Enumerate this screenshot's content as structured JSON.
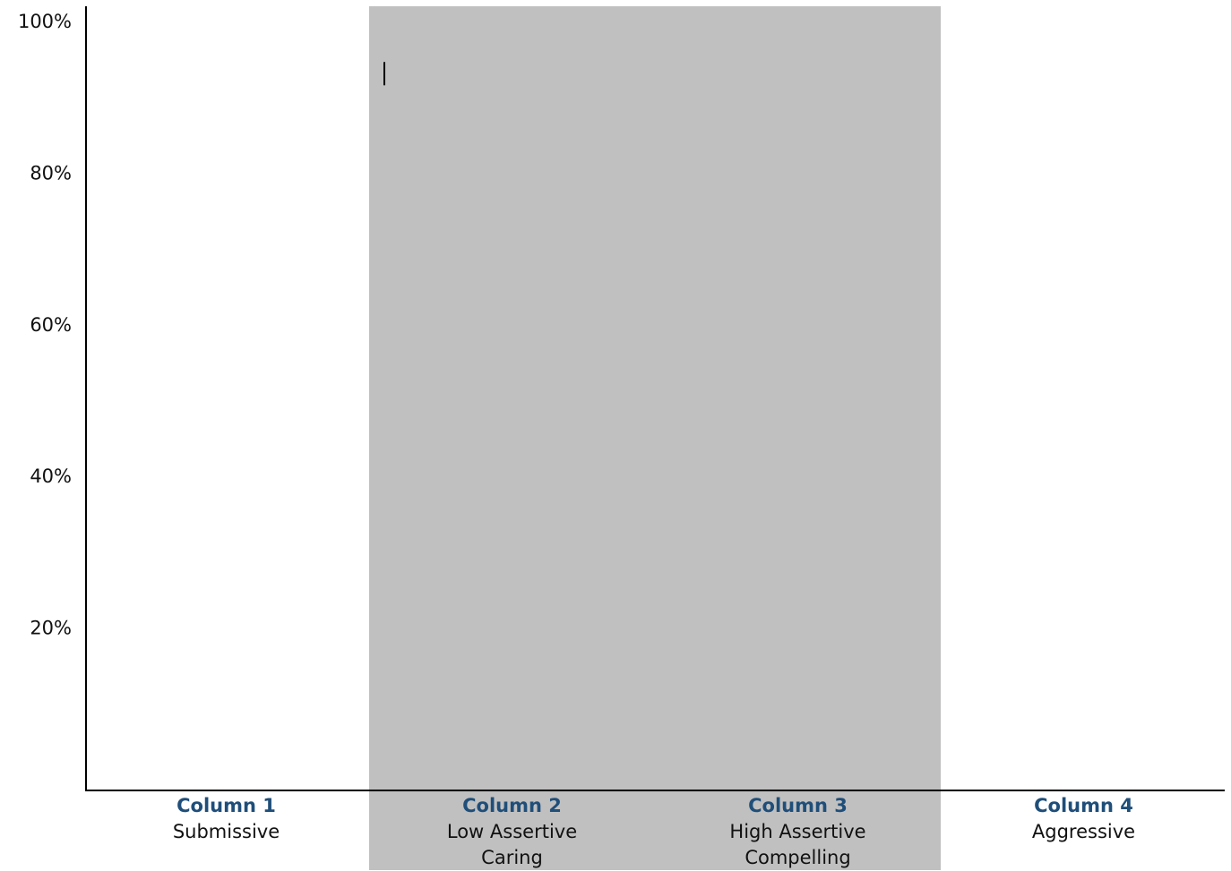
{
  "chart_data": {
    "type": "bar",
    "title": "",
    "xlabel": "",
    "ylabel": "",
    "ylim": [
      0,
      100
    ],
    "y_ticks": [
      "20%",
      "40%",
      "60%",
      "80%",
      "100%"
    ],
    "y_tick_values": [
      20,
      40,
      60,
      80,
      100
    ],
    "categories": [
      {
        "name": "Column 1",
        "lines": [
          "Submissive"
        ],
        "shaded": false
      },
      {
        "name": "Column 2",
        "lines": [
          "Low Assertive",
          "Caring"
        ],
        "shaded": true
      },
      {
        "name": "Column 3",
        "lines": [
          "High Assertive",
          "Compelling"
        ],
        "shaded": true
      },
      {
        "name": "Column 4",
        "lines": [
          "Aggressive"
        ],
        "shaded": false
      }
    ],
    "series": [
      {
        "values": [
          null,
          null,
          null,
          null
        ]
      }
    ],
    "cursor_marker_value": 93,
    "grid": false,
    "legend": "none",
    "colors": {
      "band": "#c0c0c0",
      "column_name": "#1f4e79",
      "axis": "#000000",
      "text": "#111111"
    }
  }
}
